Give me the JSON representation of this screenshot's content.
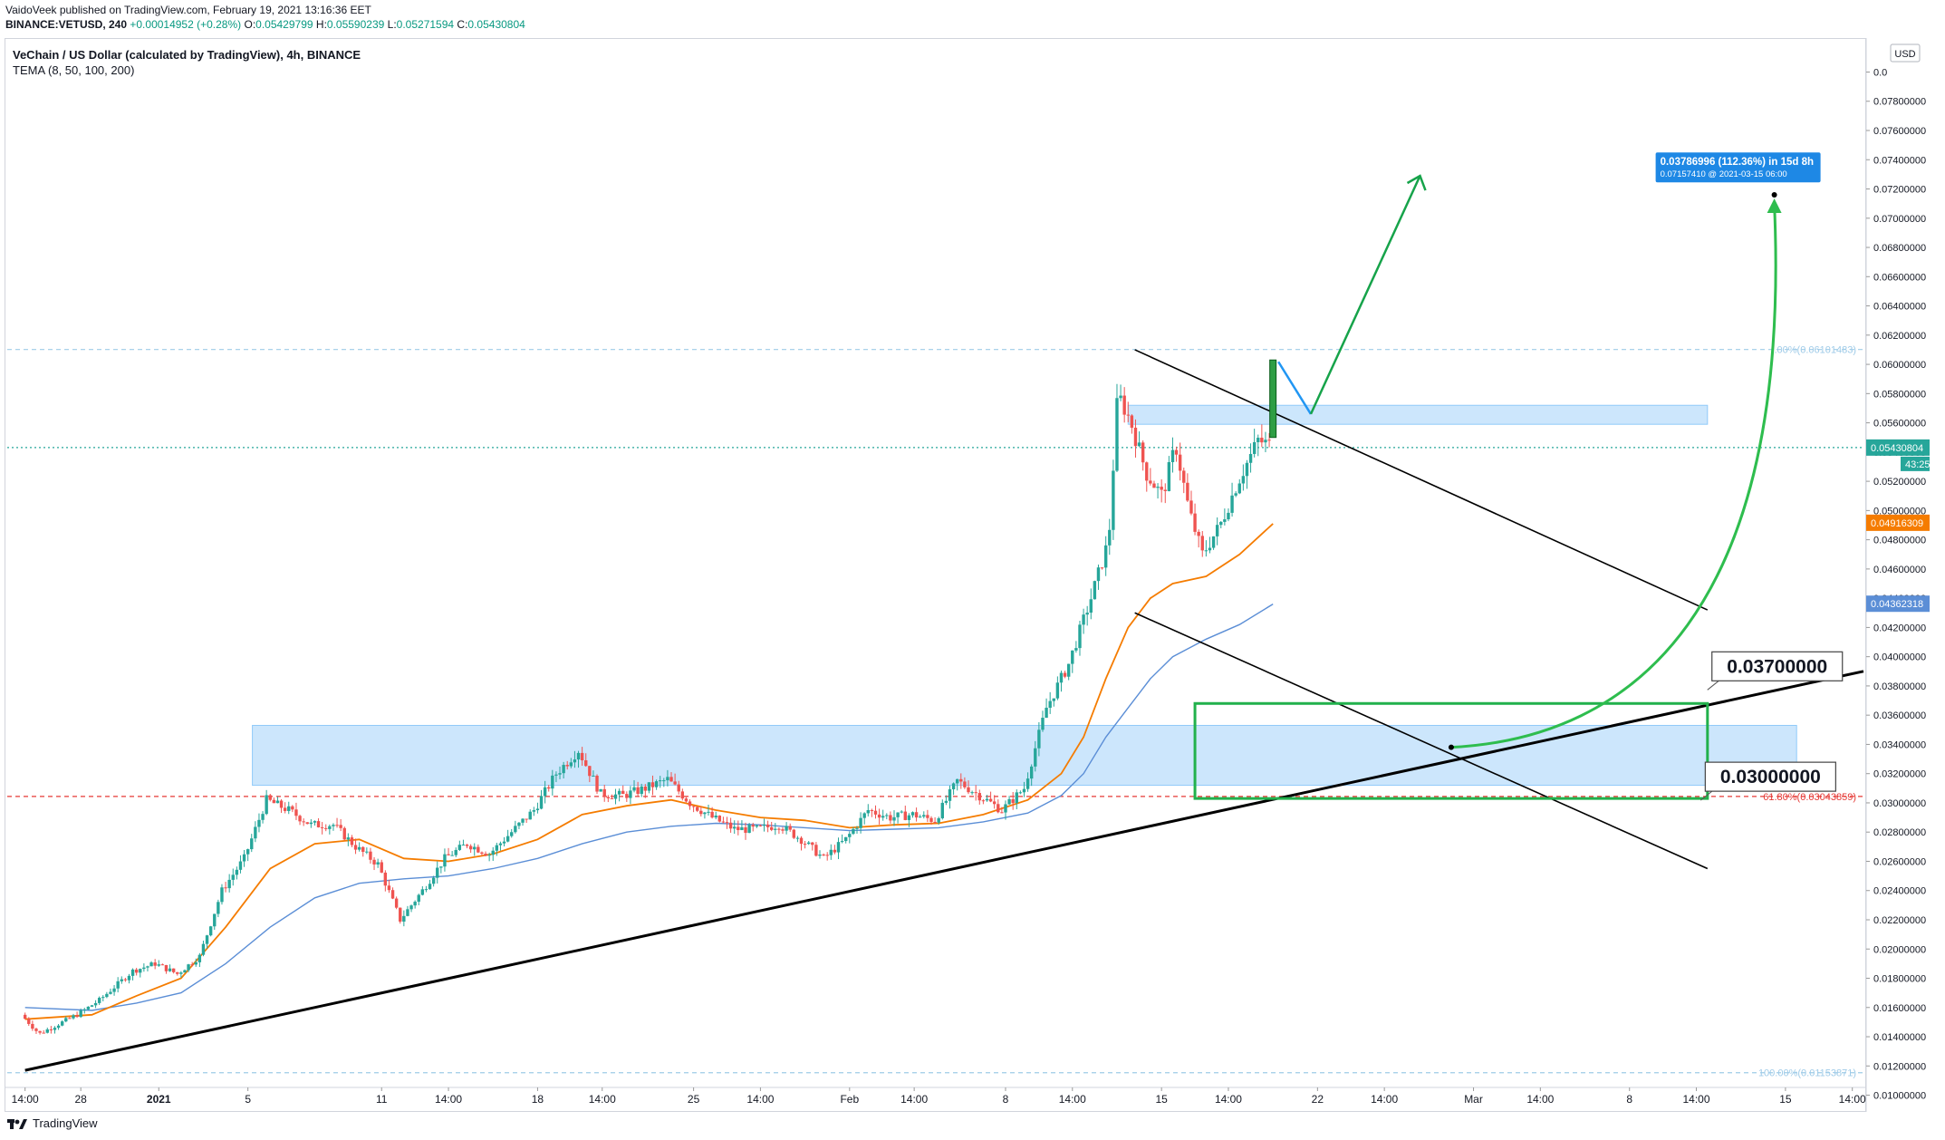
{
  "header": {
    "publisher": "VaidoVeek published on TradingView.com, February 19, 2021 13:16:36 EET",
    "symbol": "BINANCE:VETUSD, 240",
    "change": "+0.00014952 (+0.28%)",
    "o_label": "O:",
    "o": "0.05429799",
    "h_label": "H:",
    "h": "0.05590239",
    "l_label": "L:",
    "l": "0.05271594",
    "c_label": "C:",
    "c": "0.05430804"
  },
  "legend": {
    "title": "VeChain / US Dollar (calculated by TradingView), 4h, BINANCE",
    "indicator": "TEMA (8, 50, 100, 200)"
  },
  "footer": {
    "brand": "TradingView"
  },
  "colors": {
    "bull": "#26a69a",
    "bear": "#ef5350",
    "ema50": "#f57c00",
    "ema100": "#5b8ed6",
    "zone": "#bbdefb",
    "green_box": "#22b14c",
    "arrow_green": "#16a34a",
    "arrow_blue": "#2196f3"
  },
  "chart_data": {
    "type": "candlestick",
    "title": "VeChain / US Dollar (calculated by TradingView), 4h, BINANCE",
    "currency": "USD",
    "y_axis": {
      "range": [
        0.0096,
        0.0822
      ],
      "ticks": [
        "0.01000000",
        "0.01200000",
        "0.01400000",
        "0.01600000",
        "0.01800000",
        "0.02000000",
        "0.02200000",
        "0.02400000",
        "0.02600000",
        "0.02800000",
        "0.03000000",
        "0.03200000",
        "0.03400000",
        "0.03600000",
        "0.03800000",
        "0.04000000",
        "0.04200000",
        "0.04400000",
        "0.04600000",
        "0.04800000",
        "0.05000000",
        "0.05200000",
        "0.05400000",
        "0.05600000",
        "0.05800000",
        "0.06000000",
        "0.06200000",
        "0.06400000",
        "0.06600000",
        "0.06800000",
        "0.07000000",
        "0.07200000",
        "0.07400000",
        "0.07600000",
        "0.07800000",
        "0.0"
      ],
      "side": "right"
    },
    "x_axis": {
      "ticks": [
        {
          "label": "14:00",
          "day": 0
        },
        {
          "label": "28",
          "day": 2.5
        },
        {
          "label": "2021",
          "day": 6
        },
        {
          "label": "5",
          "day": 10
        },
        {
          "label": "11",
          "day": 16
        },
        {
          "label": "14:00",
          "day": 19
        },
        {
          "label": "18",
          "day": 23
        },
        {
          "label": "14:00",
          "day": 25.9
        },
        {
          "label": "25",
          "day": 30
        },
        {
          "label": "14:00",
          "day": 33
        },
        {
          "label": "Feb",
          "day": 37
        },
        {
          "label": "14:00",
          "day": 39.9
        },
        {
          "label": "8",
          "day": 44
        },
        {
          "label": "14:00",
          "day": 47
        },
        {
          "label": "15",
          "day": 51
        },
        {
          "label": "14:00",
          "day": 54
        },
        {
          "label": "22",
          "day": 58
        },
        {
          "label": "14:00",
          "day": 61
        },
        {
          "label": "Mar",
          "day": 65
        },
        {
          "label": "14:00",
          "day": 68
        },
        {
          "label": "8",
          "day": 72
        },
        {
          "label": "14:00",
          "day": 75
        },
        {
          "label": "15",
          "day": 79
        },
        {
          "label": "14:00",
          "day": 82
        }
      ],
      "day_range": [
        -0.8,
        82.5
      ]
    },
    "price_path": [
      [
        0,
        0.0155
      ],
      [
        0.8,
        0.0142
      ],
      [
        2.5,
        0.0155
      ],
      [
        3.5,
        0.0165
      ],
      [
        5,
        0.0185
      ],
      [
        6,
        0.019
      ],
      [
        7,
        0.0183
      ],
      [
        8,
        0.0195
      ],
      [
        9,
        0.024
      ],
      [
        10,
        0.0262
      ],
      [
        11,
        0.0302
      ],
      [
        12,
        0.0295
      ],
      [
        13,
        0.0285
      ],
      [
        14,
        0.0285
      ],
      [
        15,
        0.027
      ],
      [
        16,
        0.0258
      ],
      [
        17,
        0.022
      ],
      [
        18,
        0.024
      ],
      [
        19,
        0.0262
      ],
      [
        20,
        0.0272
      ],
      [
        21,
        0.0265
      ],
      [
        22,
        0.028
      ],
      [
        23,
        0.0295
      ],
      [
        24,
        0.032
      ],
      [
        25,
        0.0336
      ],
      [
        26,
        0.0306
      ],
      [
        27,
        0.0305
      ],
      [
        28,
        0.031
      ],
      [
        29,
        0.0316
      ],
      [
        30,
        0.03
      ],
      [
        31,
        0.029
      ],
      [
        32,
        0.0282
      ],
      [
        33,
        0.0282
      ],
      [
        34,
        0.0285
      ],
      [
        35,
        0.0275
      ],
      [
        36,
        0.0262
      ],
      [
        37,
        0.0275
      ],
      [
        38,
        0.0295
      ],
      [
        39,
        0.029
      ],
      [
        40,
        0.0292
      ],
      [
        41,
        0.0288
      ],
      [
        42,
        0.0315
      ],
      [
        43,
        0.0305
      ],
      [
        44,
        0.0295
      ],
      [
        45,
        0.031
      ],
      [
        46,
        0.0365
      ],
      [
        47,
        0.0395
      ],
      [
        48,
        0.044
      ],
      [
        48.8,
        0.048
      ],
      [
        49.2,
        0.058
      ],
      [
        49.8,
        0.056
      ],
      [
        50.5,
        0.0525
      ],
      [
        51.2,
        0.051
      ],
      [
        51.8,
        0.0545
      ],
      [
        52.4,
        0.05
      ],
      [
        53,
        0.047
      ],
      [
        53.8,
        0.049
      ],
      [
        54.6,
        0.052
      ],
      [
        55.5,
        0.0548
      ],
      [
        56,
        0.0545
      ]
    ],
    "ema50": [
      [
        0,
        0.0152
      ],
      [
        3,
        0.0155
      ],
      [
        5,
        0.0168
      ],
      [
        7,
        0.018
      ],
      [
        9,
        0.0215
      ],
      [
        11,
        0.0255
      ],
      [
        13,
        0.0272
      ],
      [
        15,
        0.0275
      ],
      [
        17,
        0.0262
      ],
      [
        19,
        0.026
      ],
      [
        21,
        0.0265
      ],
      [
        23,
        0.0275
      ],
      [
        25,
        0.0292
      ],
      [
        27,
        0.0298
      ],
      [
        29,
        0.0302
      ],
      [
        31,
        0.0295
      ],
      [
        33,
        0.029
      ],
      [
        35,
        0.0288
      ],
      [
        37,
        0.0283
      ],
      [
        39,
        0.0285
      ],
      [
        41,
        0.0286
      ],
      [
        43,
        0.0292
      ],
      [
        45,
        0.0302
      ],
      [
        46.5,
        0.032
      ],
      [
        47.5,
        0.0345
      ],
      [
        48.5,
        0.0385
      ],
      [
        49.5,
        0.042
      ],
      [
        50.5,
        0.044
      ],
      [
        51.5,
        0.045
      ],
      [
        53,
        0.0455
      ],
      [
        54.5,
        0.047
      ],
      [
        56,
        0.0491
      ]
    ],
    "ema100": [
      [
        0,
        0.016
      ],
      [
        3,
        0.0158
      ],
      [
        5,
        0.0163
      ],
      [
        7,
        0.017
      ],
      [
        9,
        0.019
      ],
      [
        11,
        0.0215
      ],
      [
        13,
        0.0235
      ],
      [
        15,
        0.0245
      ],
      [
        17,
        0.0248
      ],
      [
        19,
        0.025
      ],
      [
        21,
        0.0255
      ],
      [
        23,
        0.0262
      ],
      [
        25,
        0.0272
      ],
      [
        27,
        0.028
      ],
      [
        29,
        0.0284
      ],
      [
        31,
        0.0286
      ],
      [
        33,
        0.0285
      ],
      [
        35,
        0.0283
      ],
      [
        37,
        0.0281
      ],
      [
        39,
        0.0282
      ],
      [
        41,
        0.0283
      ],
      [
        43,
        0.0287
      ],
      [
        45,
        0.0293
      ],
      [
        46.5,
        0.0305
      ],
      [
        47.5,
        0.032
      ],
      [
        48.5,
        0.0345
      ],
      [
        49.5,
        0.0365
      ],
      [
        50.5,
        0.0385
      ],
      [
        51.5,
        0.04
      ],
      [
        53,
        0.0412
      ],
      [
        54.5,
        0.0422
      ],
      [
        56,
        0.0436
      ]
    ],
    "price_labels": [
      {
        "text": "0.05430804",
        "value": 0.05430804,
        "color": "#26a69a",
        "timer": "43:25"
      },
      {
        "text": "0.04916309",
        "value": 0.04916309,
        "color": "#f57c00"
      },
      {
        "text": "0.04362318",
        "value": 0.04362318,
        "color": "#5b8ed6"
      }
    ],
    "zones": [
      {
        "name": "support-zone",
        "day_from": 10.2,
        "day_to": 79.5,
        "price_from": 0.0312,
        "price_to": 0.0353
      },
      {
        "name": "resistance-zone",
        "day_from": 49.5,
        "day_to": 75.5,
        "price_from": 0.0559,
        "price_to": 0.0572
      }
    ],
    "green_box": {
      "day_from": 52.5,
      "day_to": 75.5,
      "price_from": 0.0303,
      "price_to": 0.0368
    },
    "breakout_candle": {
      "day": 56,
      "open": 0.055,
      "close": 0.0603
    },
    "trendlines": [
      {
        "name": "ascending-trendline",
        "from": [
          0,
          0.0117
        ],
        "to": [
          82.5,
          0.039
        ],
        "width": 3
      },
      {
        "name": "channel-upper",
        "from": [
          49.8,
          0.061
        ],
        "to": [
          75.5,
          0.0432
        ],
        "width": 1.6
      },
      {
        "name": "channel-lower",
        "from": [
          49.8,
          0.043
        ],
        "to": [
          75.5,
          0.0255
        ],
        "width": 1.6
      }
    ],
    "levels": [
      {
        "name": "fib-100",
        "value": 0.01153871,
        "label": "100.00%(0.01153871)",
        "color": "#9fcbe8",
        "dash": "5,4"
      },
      {
        "name": "fib-0",
        "value": 0.06101483,
        "label": ".00%(0.06101483)",
        "color": "#9fcbe8",
        "dash": "5,4"
      },
      {
        "name": "fib-618",
        "value": 0.03043859,
        "label": "61.80%(0.03043859)",
        "color": "#e53935",
        "dash": "5,4"
      },
      {
        "name": "last-price",
        "value": 0.05430804,
        "label": "",
        "color": "#26a69a",
        "dash": "2,3"
      }
    ],
    "annotations": [
      {
        "name": "callout-0037",
        "text": "0.03700000",
        "value": 0.037
      },
      {
        "name": "callout-003",
        "text": "0.03000000",
        "value": 0.03
      }
    ],
    "measurement": {
      "line1": "0.03786996 (112.36%) in 15d 8h",
      "line2": "0.07157410 @ 2021-03-15  06:00",
      "from": [
        64,
        0.0338
      ],
      "to": [
        78.5,
        0.0716
      ]
    }
  }
}
